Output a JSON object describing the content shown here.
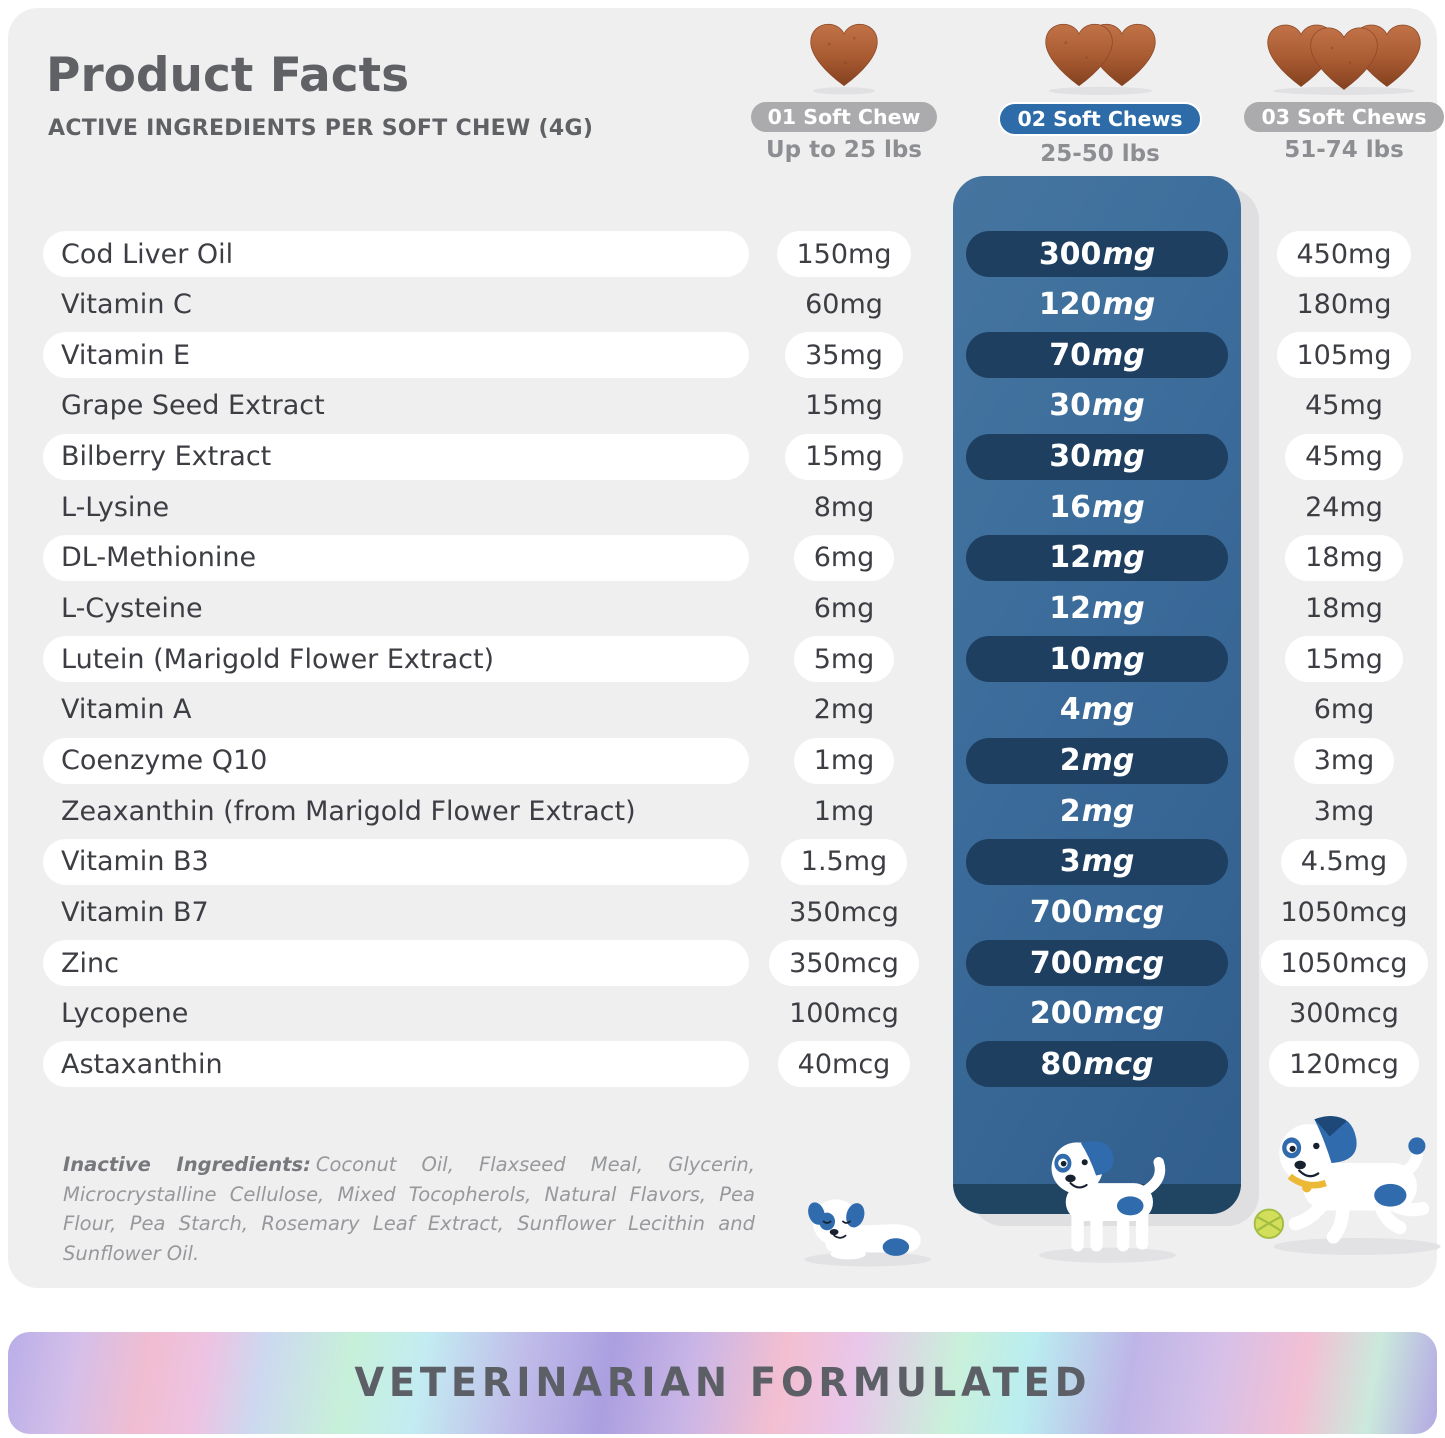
{
  "header": {
    "title": "Product Facts",
    "subtitle": "ACTIVE INGREDIENTS PER SOFT CHEW (4G)"
  },
  "columns": [
    {
      "pill_label": "01 Soft Chew",
      "weight_range": "Up to 25 lbs",
      "chew_count": 1,
      "highlighted": false
    },
    {
      "pill_label": "02 Soft Chews",
      "weight_range": "25-50 lbs",
      "chew_count": 2,
      "highlighted": true
    },
    {
      "pill_label": "03 Soft Chews",
      "weight_range": "51-74 lbs",
      "chew_count": 3,
      "highlighted": false
    }
  ],
  "table": {
    "rows": [
      {
        "name": "Cod Liver Oil",
        "chew1": "150mg",
        "chew2": "300mg",
        "chew3": "450mg"
      },
      {
        "name": "Vitamin C",
        "chew1": "60mg",
        "chew2": "120mg",
        "chew3": "180mg"
      },
      {
        "name": "Vitamin E",
        "chew1": "35mg",
        "chew2": "70mg",
        "chew3": "105mg"
      },
      {
        "name": "Grape Seed Extract",
        "chew1": "15mg",
        "chew2": "30mg",
        "chew3": "45mg"
      },
      {
        "name": "Bilberry Extract",
        "chew1": "15mg",
        "chew2": "30mg",
        "chew3": "45mg"
      },
      {
        "name": "L-Lysine",
        "chew1": "8mg",
        "chew2": "16mg",
        "chew3": "24mg"
      },
      {
        "name": "DL-Methionine",
        "chew1": "6mg",
        "chew2": "12mg",
        "chew3": "18mg"
      },
      {
        "name": "L-Cysteine",
        "chew1": "6mg",
        "chew2": "12mg",
        "chew3": "18mg"
      },
      {
        "name": "Lutein (Marigold Flower Extract)",
        "chew1": "5mg",
        "chew2": "10mg",
        "chew3": "15mg"
      },
      {
        "name": "Vitamin A",
        "chew1": "2mg",
        "chew2": "4mg",
        "chew3": "6mg"
      },
      {
        "name": "Coenzyme Q10",
        "chew1": "1mg",
        "chew2": "2mg",
        "chew3": "3mg"
      },
      {
        "name": "Zeaxanthin (from Marigold Flower Extract)",
        "chew1": "1mg",
        "chew2": "2mg",
        "chew3": "3mg"
      },
      {
        "name": "Vitamin B3",
        "chew1": "1.5mg",
        "chew2": "3mg",
        "chew3": "4.5mg"
      },
      {
        "name": "Vitamin B7",
        "chew1": "350mcg",
        "chew2": "700mcg",
        "chew3": "1050mcg"
      },
      {
        "name": "Zinc",
        "chew1": "350mcg",
        "chew2": "700mcg",
        "chew3": "1050mcg"
      },
      {
        "name": "Lycopene",
        "chew1": "100mcg",
        "chew2": "200mcg",
        "chew3": "300mcg"
      },
      {
        "name": "Astaxanthin",
        "chew1": "40mcg",
        "chew2": "80mcg",
        "chew3": "120mcg"
      }
    ]
  },
  "inactive": {
    "label": "Inactive Ingredients:",
    "text": "Coconut Oil, Flaxseed Meal, Glycerin, Microcrystalline Cellulose, Mixed Tocopherols, Natural Flavors, Pea Flour, Pea Starch, Rosemary Leaf Extract, Sunflower Lecithin and Sunflower Oil."
  },
  "banner": {
    "text": "VETERINARIAN FORMULATED"
  },
  "colors": {
    "card_bg": "#efeff0",
    "accent_blue": "#2d6ca8",
    "panel_blue": "#3b6b9a",
    "navy_pill": "#1e3f60",
    "heart_brown": "#a85a31",
    "gray_pill": "#ababad"
  }
}
